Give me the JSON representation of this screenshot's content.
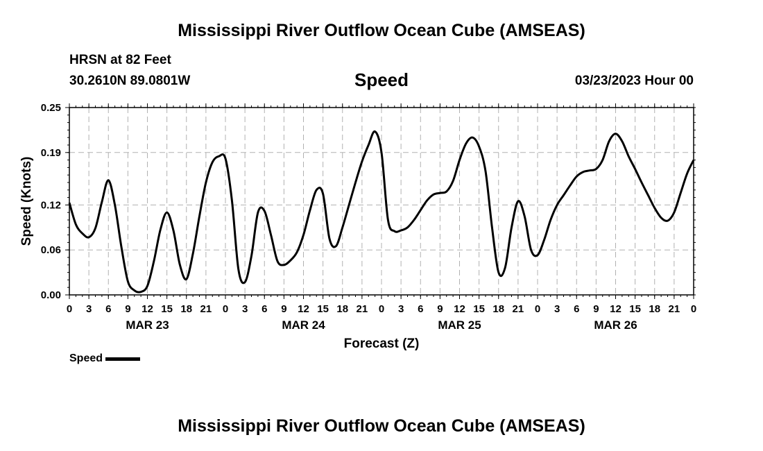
{
  "header": {
    "title": "Mississippi River Outflow Ocean Cube (AMSEAS)",
    "station": "HRSN at 82 Feet",
    "coords": "30.2610N  89.0801W",
    "variable": "Speed",
    "datetime": "03/23/2023 Hour 00"
  },
  "footer": {
    "title": "Mississippi River Outflow Ocean Cube (AMSEAS)"
  },
  "legend": {
    "label": "Speed",
    "color": "#000000"
  },
  "chart_data": {
    "type": "line",
    "title": "Speed",
    "xlabel": "Forecast (Z)",
    "ylabel": "Speed (Knots)",
    "ylim": [
      0,
      0.25
    ],
    "y_ticks": [
      0.25,
      0.19,
      0.12,
      0.06,
      0.0
    ],
    "y_tick_labels": [
      "0.25",
      "0.19",
      "0.12",
      "0.06",
      "0.00"
    ],
    "xlim_hours": [
      0,
      96
    ],
    "x_tick_labels": [
      "0",
      "3",
      "6",
      "9",
      "12",
      "15",
      "18",
      "21",
      "0",
      "3",
      "6",
      "9",
      "12",
      "15",
      "18",
      "21",
      "0",
      "3",
      "6",
      "9",
      "12",
      "15",
      "18",
      "21",
      "0",
      "3",
      "6",
      "9",
      "12",
      "15",
      "18",
      "21",
      "0"
    ],
    "day_labels": [
      {
        "label": "MAR 23",
        "hour": 12
      },
      {
        "label": "MAR 24",
        "hour": 36
      },
      {
        "label": "MAR 25",
        "hour": 60
      },
      {
        "label": "MAR 26",
        "hour": 84
      }
    ],
    "grid": true,
    "series": [
      {
        "name": "Speed",
        "color": "#000000",
        "x_hours": [
          0,
          1,
          2,
          3,
          4,
          5,
          6,
          7,
          8,
          9,
          10,
          11,
          12,
          13,
          14,
          15,
          16,
          17,
          18,
          19,
          20,
          21,
          22,
          23,
          24,
          25,
          26,
          27,
          28,
          29,
          30,
          31,
          32,
          33,
          34,
          35,
          36,
          37,
          38,
          39,
          40,
          41,
          42,
          43,
          44,
          45,
          46,
          47,
          48,
          49,
          50,
          51,
          52,
          53,
          54,
          55,
          56,
          57,
          58,
          59,
          60,
          61,
          62,
          63,
          64,
          65,
          66,
          67,
          68,
          69,
          70,
          71,
          72,
          73,
          74,
          75,
          76,
          77,
          78,
          79,
          80,
          81,
          82,
          83,
          84,
          85,
          86,
          87,
          88,
          89,
          90,
          91,
          92,
          93,
          94,
          95,
          96
        ],
        "values": [
          0.123,
          0.094,
          0.082,
          0.077,
          0.089,
          0.124,
          0.153,
          0.12,
          0.064,
          0.018,
          0.006,
          0.004,
          0.012,
          0.045,
          0.087,
          0.11,
          0.086,
          0.04,
          0.021,
          0.055,
          0.105,
          0.15,
          0.177,
          0.185,
          0.182,
          0.126,
          0.034,
          0.017,
          0.052,
          0.11,
          0.112,
          0.08,
          0.045,
          0.04,
          0.046,
          0.057,
          0.08,
          0.113,
          0.14,
          0.135,
          0.075,
          0.065,
          0.09,
          0.12,
          0.15,
          0.178,
          0.2,
          0.218,
          0.19,
          0.1,
          0.085,
          0.086,
          0.09,
          0.1,
          0.113,
          0.126,
          0.134,
          0.136,
          0.138,
          0.152,
          0.18,
          0.202,
          0.21,
          0.198,
          0.165,
          0.09,
          0.03,
          0.036,
          0.09,
          0.125,
          0.105,
          0.06,
          0.053,
          0.073,
          0.1,
          0.12,
          0.133,
          0.146,
          0.158,
          0.164,
          0.166,
          0.168,
          0.18,
          0.205,
          0.215,
          0.205,
          0.185,
          0.168,
          0.15,
          0.133,
          0.116,
          0.103,
          0.099,
          0.11,
          0.136,
          0.162,
          0.18
        ]
      }
    ]
  }
}
